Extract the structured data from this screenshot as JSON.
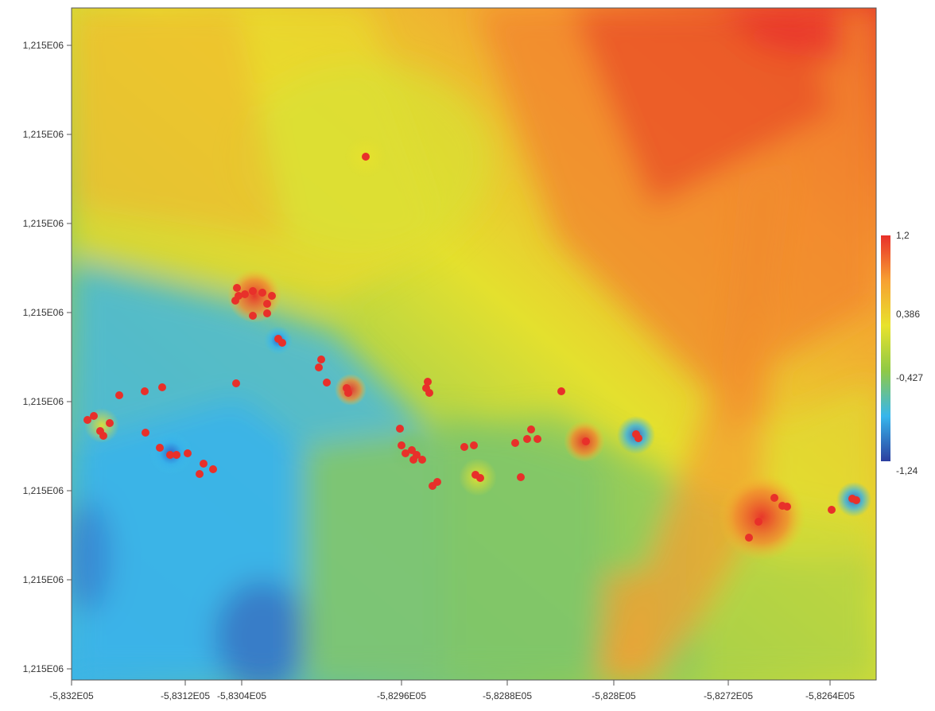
{
  "chart_data": {
    "type": "heatmap",
    "x_ticks": [
      "-5,832E05",
      "-5,8312E05",
      "-5,8304E05",
      "-5,8296E05",
      "-5,8288E05",
      "-5,828E05",
      "-5,8272E05",
      "-5,8264E05"
    ],
    "y_ticks": [
      "1,215E06",
      "1,215E06",
      "1,215E06",
      "1,215E06",
      "1,215E06",
      "1,215E06",
      "1,215E06",
      "1,215E06"
    ],
    "colorbar": {
      "labels": [
        "1,2",
        "0,386",
        "-0,427",
        "-1,24"
      ],
      "min": -1.24,
      "max": 1.2,
      "colors": [
        "#2c3f9f",
        "#37b6ec",
        "#8fc946",
        "#e8e22c",
        "#f7a032",
        "#e8302a"
      ]
    },
    "sample_point_color": "#e8302a"
  }
}
